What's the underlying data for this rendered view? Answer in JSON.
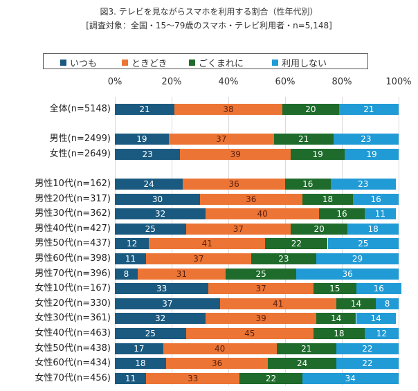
{
  "chart_data": {
    "type": "bar",
    "orientation": "horizontal-stacked-100",
    "title": "図3. テレビを見ながらスマホを利用する割合（性年代別）",
    "subtitle": "[調査対象：全国・15～79歳のスマホ・テレビ利用者・n=5,148]",
    "xlabel": "",
    "ylabel": "",
    "xlim": [
      0,
      100
    ],
    "x_ticks": [
      "0%",
      "20%",
      "40%",
      "60%",
      "80%",
      "100%"
    ],
    "grid": true,
    "legend_position": "top",
    "categories": [
      "全体(n=5148)",
      "",
      "男性(n=2499)",
      "女性(n=2649)",
      "",
      "男性10代(n=162)",
      "男性20代(n=317)",
      "男性30代(n=362)",
      "男性40代(n=427)",
      "男性50代(n=437)",
      "男性60代(n=398)",
      "男性70代(n=396)",
      "女性10代(n=167)",
      "女性20代(n=330)",
      "女性30代(n=361)",
      "女性40代(n=463)",
      "女性50代(n=438)",
      "女性60代(n=434)",
      "女性70代(n=456)"
    ],
    "series": [
      {
        "name": "いつも",
        "color": "#1a5a80",
        "values": [
          21,
          null,
          19,
          23,
          null,
          24,
          30,
          32,
          25,
          12,
          11,
          8,
          33,
          37,
          32,
          25,
          17,
          18,
          11
        ]
      },
      {
        "name": "ときどき",
        "color": "#ec7535",
        "values": [
          38,
          null,
          37,
          39,
          null,
          36,
          36,
          40,
          37,
          41,
          37,
          31,
          37,
          41,
          39,
          45,
          40,
          36,
          33
        ]
      },
      {
        "name": "ごくまれに",
        "color": "#1e6b2b",
        "values": [
          20,
          null,
          21,
          19,
          null,
          16,
          18,
          16,
          20,
          22,
          23,
          25,
          15,
          14,
          14,
          18,
          21,
          24,
          22
        ]
      },
      {
        "name": "利用しない",
        "color": "#219bd6",
        "values": [
          21,
          null,
          23,
          19,
          null,
          23,
          16,
          11,
          18,
          25,
          29,
          36,
          16,
          8,
          14,
          12,
          22,
          22,
          34
        ]
      }
    ]
  }
}
